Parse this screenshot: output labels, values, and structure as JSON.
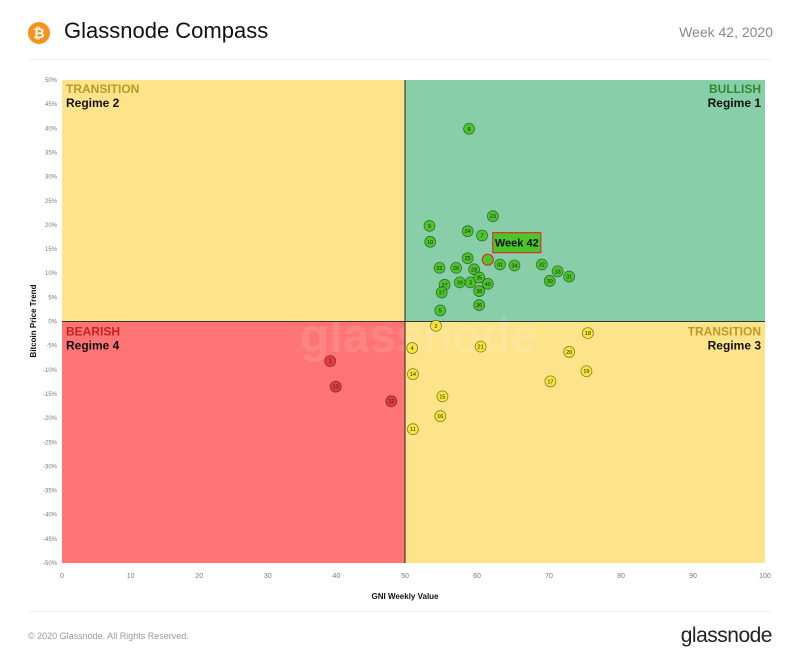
{
  "header": {
    "title": "Glassnode Compass",
    "week": "Week 42, 2020",
    "icon": "bitcoin-icon"
  },
  "footer": {
    "copyright": "© 2020 Glassnode. All Rights Reserved.",
    "logo": "glassnode"
  },
  "colors": {
    "bullish": "#88cfa9",
    "transition": "#fde38a",
    "bearish": "#ff7575",
    "green_point": "#4cc52a",
    "yellow_point": "#f5e637",
    "red_point": "#e83a3a",
    "highlight": "#e32b2b"
  },
  "chart_data": {
    "type": "scatter",
    "xlabel": "GNI  Weekly Value",
    "ylabel": "Bitcoin  Price Trend",
    "xlim": [
      0,
      100
    ],
    "ylim": [
      -50,
      50
    ],
    "xticks": [
      "0",
      "10",
      "20",
      "30",
      "40",
      "50",
      "60",
      "70",
      "80",
      "90",
      "100"
    ],
    "yticks": [
      "50%",
      "45%",
      "40%",
      "35%",
      "30%",
      "25%",
      "20%",
      "15%",
      "10%",
      "5%",
      "0%",
      "-5%",
      "-10%",
      "-15%",
      "-20%",
      "-25%",
      "-30%",
      "-35%",
      "-40%",
      "-45%",
      "-50%"
    ],
    "quadrants": [
      {
        "name": "TRANSITION",
        "regime": "Regime 2",
        "color": "transition"
      },
      {
        "name": "BULLISH",
        "regime": "Regime 1",
        "color": "bullish"
      },
      {
        "name": "BEARISH",
        "regime": "Regime 4",
        "color": "bearish"
      },
      {
        "name": "TRANSITION",
        "regime": "Regime 3",
        "color": "transition"
      }
    ],
    "points": [
      {
        "label": "1",
        "x": 39.1,
        "y": -8.2
      },
      {
        "label": "2",
        "x": 54.3,
        "y": -0.9
      },
      {
        "label": "3",
        "x": 59.1,
        "y": 8.1
      },
      {
        "label": "4",
        "x": 51.0,
        "y": -5.5
      },
      {
        "label": "5",
        "x": 54.9,
        "y": 2.3
      },
      {
        "label": "7",
        "x": 60.7,
        "y": 17.8
      },
      {
        "label": "8",
        "x": 58.9,
        "y": 39.9
      },
      {
        "label": "9",
        "x": 53.4,
        "y": 19.8
      },
      {
        "label": "10",
        "x": 53.5,
        "y": 16.5
      },
      {
        "label": "11",
        "x": 51.1,
        "y": -22.3
      },
      {
        "label": "12",
        "x": 48.0,
        "y": -16.5
      },
      {
        "label": "13",
        "x": 39.9,
        "y": -13.5
      },
      {
        "label": "14",
        "x": 51.1,
        "y": -10.9
      },
      {
        "label": "15",
        "x": 55.2,
        "y": -15.5
      },
      {
        "label": "16",
        "x": 54.9,
        "y": -19.6
      },
      {
        "label": "17",
        "x": 70.2,
        "y": -12.4
      },
      {
        "label": "18",
        "x": 75.4,
        "y": -2.4
      },
      {
        "label": "19",
        "x": 75.2,
        "y": -10.3
      },
      {
        "label": "20",
        "x": 72.8,
        "y": -6.3
      },
      {
        "label": "21",
        "x": 60.5,
        "y": -5.2
      },
      {
        "label": "22",
        "x": 54.8,
        "y": 11.1
      },
      {
        "label": "23",
        "x": 62.2,
        "y": 21.8
      },
      {
        "label": "24",
        "x": 58.7,
        "y": 18.7
      },
      {
        "label": "25",
        "x": 58.7,
        "y": 13.1
      },
      {
        "label": "26",
        "x": 57.1,
        "y": 11.1
      },
      {
        "label": "27",
        "x": 55.5,
        "y": 7.6
      },
      {
        "label": "28",
        "x": 59.6,
        "y": 10.8
      },
      {
        "label": "30",
        "x": 70.1,
        "y": 8.4
      },
      {
        "label": "31",
        "x": 72.8,
        "y": 9.3
      },
      {
        "label": "32",
        "x": 69.0,
        "y": 11.8
      },
      {
        "label": "33",
        "x": 71.2,
        "y": 10.4
      },
      {
        "label": "34",
        "x": 65.2,
        "y": 11.6
      },
      {
        "label": "35",
        "x": 60.3,
        "y": 9.1
      },
      {
        "label": "36",
        "x": 60.3,
        "y": 3.4
      },
      {
        "label": "37",
        "x": 55.1,
        "y": 6.0
      },
      {
        "label": "38",
        "x": 60.3,
        "y": 6.3
      },
      {
        "label": "39",
        "x": 57.6,
        "y": 8.1
      },
      {
        "label": "40",
        "x": 61.5,
        "y": 7.8
      },
      {
        "label": "41",
        "x": 63.2,
        "y": 11.8
      }
    ],
    "current": {
      "label": "Week 42",
      "x": 61.5,
      "y": 12.8
    }
  }
}
